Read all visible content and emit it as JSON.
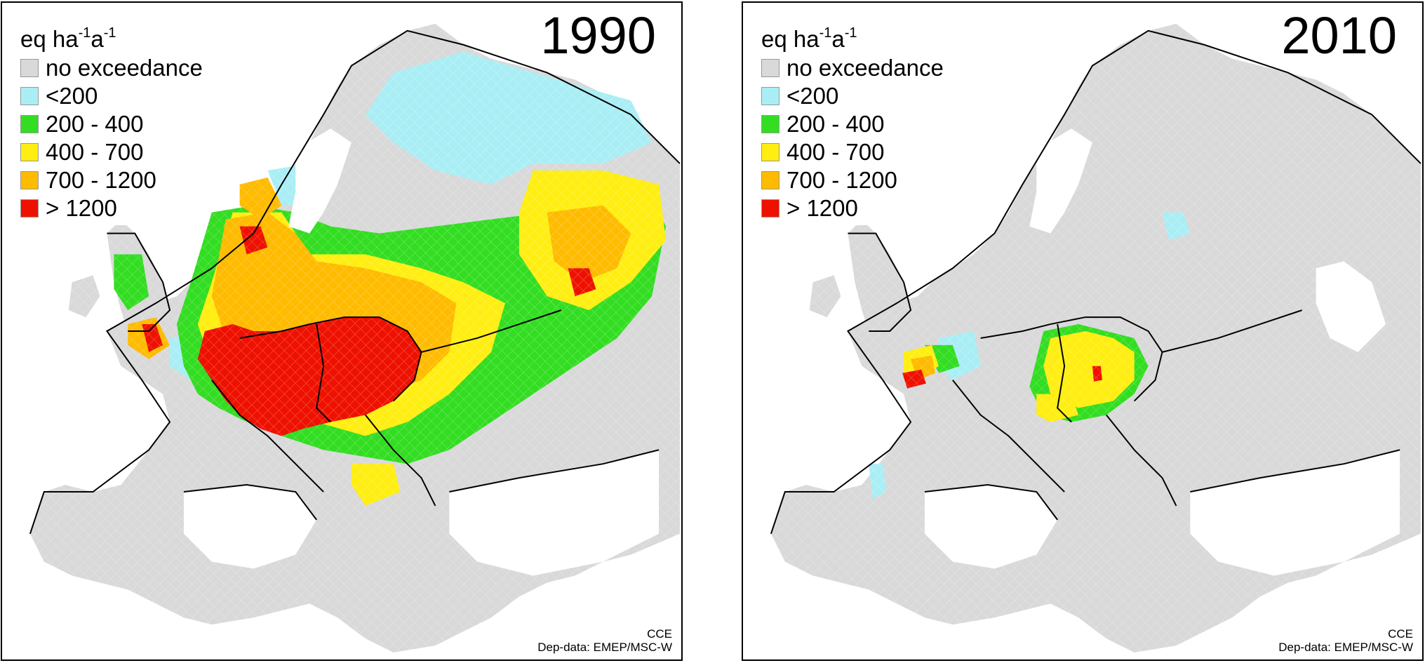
{
  "unit_label": "eq ha",
  "unit_sup1": "-1",
  "unit_mid": "a",
  "unit_sup2": "-1",
  "legend": [
    {
      "label": "no exceedance",
      "color": "#d9d9d9"
    },
    {
      "label": "<200",
      "color": "#aaeef5"
    },
    {
      "label": "200 - 400",
      "color": "#33dd22"
    },
    {
      "label": "400 - 700",
      "color": "#ffee11"
    },
    {
      "label": "700 - 1200",
      "color": "#ffbb00"
    },
    {
      "label": "> 1200",
      "color": "#ee1100"
    }
  ],
  "panels": [
    {
      "year": "1990",
      "credit1": "CCE",
      "credit2": "Dep-data: EMEP/MSC-W"
    },
    {
      "year": "2010",
      "credit1": "CCE",
      "credit2": "Dep-data: EMEP/MSC-W"
    }
  ]
}
